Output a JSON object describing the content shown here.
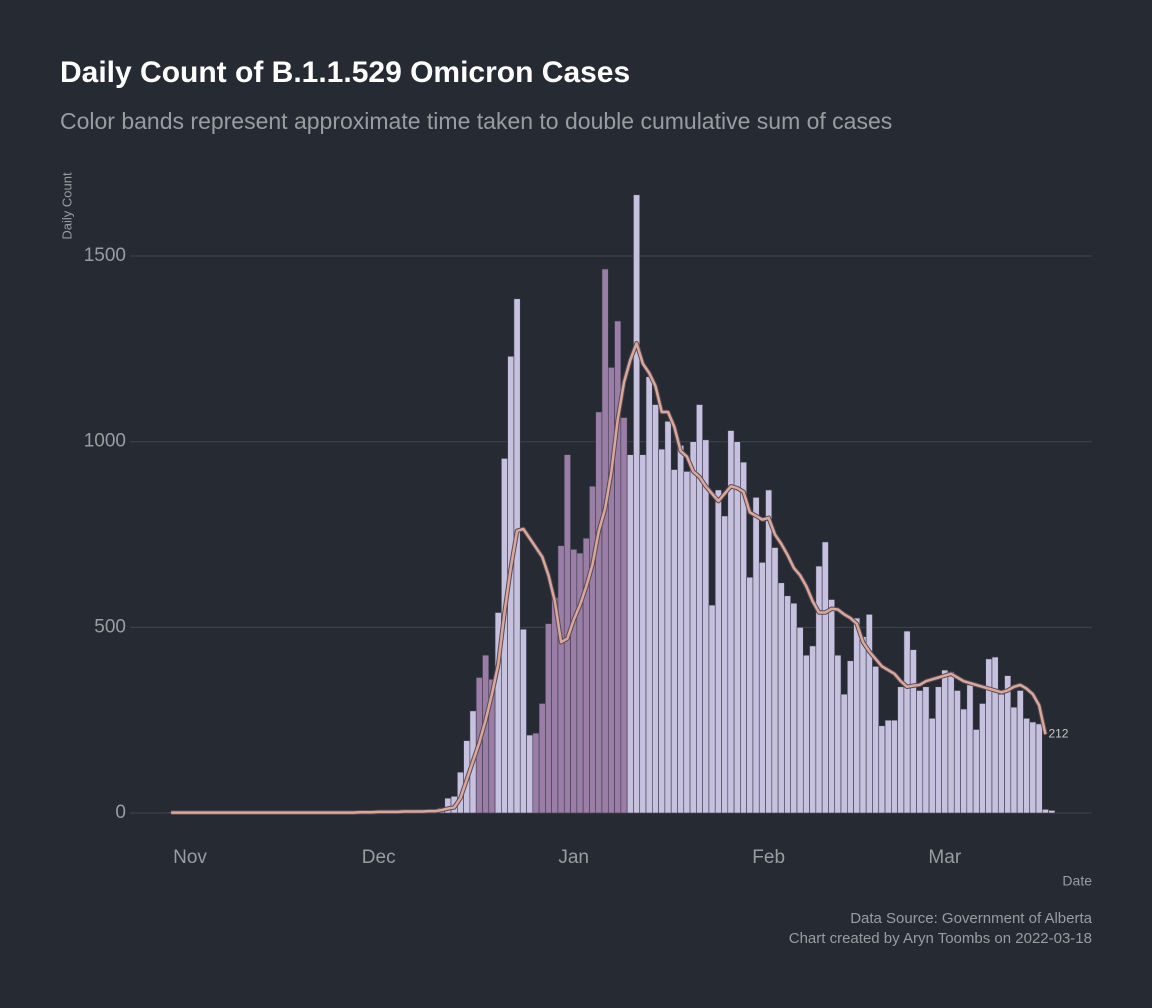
{
  "chart_data": {
    "type": "bar",
    "title": "Daily Count of B.1.1.529 Omicron Cases",
    "subtitle": "Color bands represent approximate time taken to double cumulative sum of cases",
    "y_label": "Daily Count",
    "x_label": "Date",
    "caption": [
      "Data Source: Government of Alberta",
      "Chart created by Aryn Toombs on 2022-03-18"
    ],
    "categories": [
      null,
      null,
      null,
      "Nov",
      null,
      null,
      null,
      null,
      null,
      null,
      null,
      null,
      null,
      null,
      null,
      null,
      null,
      null,
      null,
      null,
      null,
      null,
      null,
      null,
      null,
      null,
      null,
      null,
      null,
      null,
      null,
      null,
      null,
      "Dec",
      null,
      null,
      null,
      null,
      null,
      null,
      null,
      null,
      null,
      null,
      null,
      null,
      null,
      null,
      null,
      null,
      null,
      null,
      null,
      null,
      null,
      null,
      null,
      null,
      null,
      null,
      null,
      null,
      null,
      null,
      "Jan",
      null,
      null,
      null,
      null,
      null,
      null,
      null,
      null,
      null,
      null,
      null,
      null,
      null,
      null,
      null,
      null,
      null,
      null,
      null,
      null,
      null,
      null,
      null,
      null,
      null,
      null,
      null,
      null,
      null,
      null,
      "Feb",
      null,
      null,
      null,
      null,
      null,
      null,
      null,
      null,
      null,
      null,
      null,
      null,
      null,
      null,
      null,
      null,
      null,
      null,
      null,
      null,
      null,
      null,
      null,
      null,
      null,
      null,
      null,
      "Mar",
      null,
      null,
      null,
      null,
      null,
      null,
      null,
      null,
      null,
      null,
      null,
      null,
      null,
      null,
      null,
      null,
      null
    ],
    "values": [
      2,
      1,
      1,
      2,
      1,
      1,
      1,
      2,
      1,
      1,
      2,
      1,
      1,
      2,
      2,
      1,
      2,
      1,
      2,
      2,
      1,
      2,
      2,
      3,
      2,
      2,
      3,
      2,
      3,
      2,
      3,
      3,
      4,
      3,
      4,
      5,
      5,
      4,
      6,
      5,
      7,
      8,
      10,
      14,
      40,
      45,
      110,
      195,
      275,
      365,
      425,
      360,
      540,
      955,
      1230,
      1385,
      495,
      210,
      215,
      295,
      510,
      580,
      720,
      965,
      710,
      700,
      740,
      880,
      1080,
      1465,
      1200,
      1325,
      1065,
      965,
      1665,
      965,
      1175,
      1100,
      980,
      1055,
      925,
      990,
      920,
      1000,
      1100,
      1005,
      560,
      870,
      800,
      1030,
      1000,
      945,
      635,
      850,
      675,
      870,
      715,
      620,
      585,
      565,
      500,
      425,
      450,
      665,
      730,
      575,
      425,
      320,
      410,
      525,
      475,
      535,
      395,
      235,
      250,
      250,
      340,
      490,
      440,
      330,
      340,
      255,
      340,
      385,
      380,
      330,
      280,
      345,
      225,
      295,
      415,
      420,
      320,
      370,
      285,
      330,
      255,
      245,
      240,
      10,
      7
    ],
    "bar_colors": [
      "#c6c1df",
      "#c6c1df",
      "#c6c1df",
      "#c6c1df",
      "#c6c1df",
      "#c6c1df",
      "#c6c1df",
      "#c6c1df",
      "#c6c1df",
      "#c6c1df",
      "#c6c1df",
      "#c6c1df",
      "#c6c1df",
      "#c6c1df",
      "#c6c1df",
      "#c6c1df",
      "#c6c1df",
      "#c6c1df",
      "#c6c1df",
      "#c6c1df",
      "#c6c1df",
      "#c6c1df",
      "#c6c1df",
      "#c6c1df",
      "#c6c1df",
      "#c6c1df",
      "#c6c1df",
      "#c6c1df",
      "#c6c1df",
      "#c6c1df",
      "#c6c1df",
      "#c6c1df",
      "#c6c1df",
      "#c6c1df",
      "#c6c1df",
      "#c6c1df",
      "#c6c1df",
      "#c6c1df",
      "#c6c1df",
      "#c6c1df",
      "#c6c1df",
      "#c6c1df",
      "#c6c1df",
      "#c6c1df",
      "#c6c1df",
      "#c6c1df",
      "#c6c1df",
      "#c6c1df",
      "#c6c1df",
      "#9a7ea6",
      "#9a7ea6",
      "#9a7ea6",
      "#c6c1df",
      "#c6c1df",
      "#c6c1df",
      "#c6c1df",
      "#c6c1df",
      "#c6c1df",
      "#9a7ea6",
      "#9a7ea6",
      "#9a7ea6",
      "#9a7ea6",
      "#9a7ea6",
      "#9a7ea6",
      "#9a7ea6",
      "#9a7ea6",
      "#9a7ea6",
      "#9a7ea6",
      "#9a7ea6",
      "#9a7ea6",
      "#9a7ea6",
      "#9a7ea6",
      "#9a7ea6",
      "#c6c1df",
      "#c6c1df",
      "#c6c1df",
      "#c6c1df",
      "#c6c1df",
      "#c6c1df",
      "#c6c1df",
      "#c6c1df",
      "#c6c1df",
      "#c6c1df",
      "#c6c1df",
      "#c6c1df",
      "#c6c1df",
      "#c6c1df",
      "#c6c1df",
      "#c6c1df",
      "#c6c1df",
      "#c6c1df",
      "#c6c1df",
      "#c6c1df",
      "#c6c1df",
      "#c6c1df",
      "#c6c1df",
      "#c6c1df",
      "#c6c1df",
      "#c6c1df",
      "#c6c1df",
      "#c6c1df",
      "#c6c1df",
      "#c6c1df",
      "#c6c1df",
      "#c6c1df",
      "#c6c1df",
      "#c6c1df",
      "#c6c1df",
      "#c6c1df",
      "#c6c1df",
      "#c6c1df",
      "#c6c1df",
      "#c6c1df",
      "#c6c1df",
      "#c6c1df",
      "#c6c1df",
      "#c6c1df",
      "#c6c1df",
      "#c6c1df",
      "#c6c1df",
      "#c6c1df",
      "#c6c1df",
      "#c6c1df",
      "#c6c1df",
      "#c6c1df",
      "#c6c1df",
      "#c6c1df",
      "#c6c1df",
      "#c6c1df",
      "#c6c1df",
      "#c6c1df",
      "#c6c1df",
      "#c6c1df",
      "#c6c1df",
      "#c6c1df",
      "#c6c1df",
      "#c6c1df",
      "#c6c1df",
      "#c6c1df",
      "#c6c1df",
      "#c6c1df"
    ],
    "line": {
      "color": "#d9a89b",
      "values": [
        1,
        1,
        1,
        1,
        1,
        1,
        1,
        1,
        1,
        1,
        1,
        1,
        1,
        1,
        1,
        1,
        1,
        1,
        1,
        1,
        1,
        1,
        1,
        1,
        1,
        1,
        1,
        1,
        1,
        1,
        2,
        2,
        2,
        3,
        3,
        3,
        3,
        4,
        4,
        4,
        4,
        5,
        5,
        8,
        12,
        15,
        40,
        90,
        140,
        190,
        250,
        320,
        400,
        540,
        660,
        760,
        765,
        740,
        715,
        690,
        640,
        570,
        460,
        470,
        520,
        560,
        610,
        670,
        760,
        820,
        920,
        1060,
        1160,
        1220,
        1265,
        1210,
        1185,
        1150,
        1080,
        1080,
        1040,
        975,
        960,
        920,
        905,
        880,
        860,
        840,
        860,
        880,
        875,
        865,
        810,
        800,
        790,
        795,
        750,
        725,
        695,
        660,
        640,
        610,
        570,
        540,
        540,
        550,
        548,
        535,
        525,
        510,
        460,
        435,
        415,
        395,
        385,
        375,
        355,
        340,
        343,
        345,
        355,
        360,
        365,
        370,
        375,
        365,
        355,
        350,
        345,
        340,
        335,
        330,
        325,
        330,
        340,
        345,
        335,
        320,
        290,
        212,
        null
      ]
    },
    "ylim": [
      -60,
      1680
    ],
    "yticks": [
      0,
      500,
      1000,
      1500
    ],
    "grid": true
  }
}
